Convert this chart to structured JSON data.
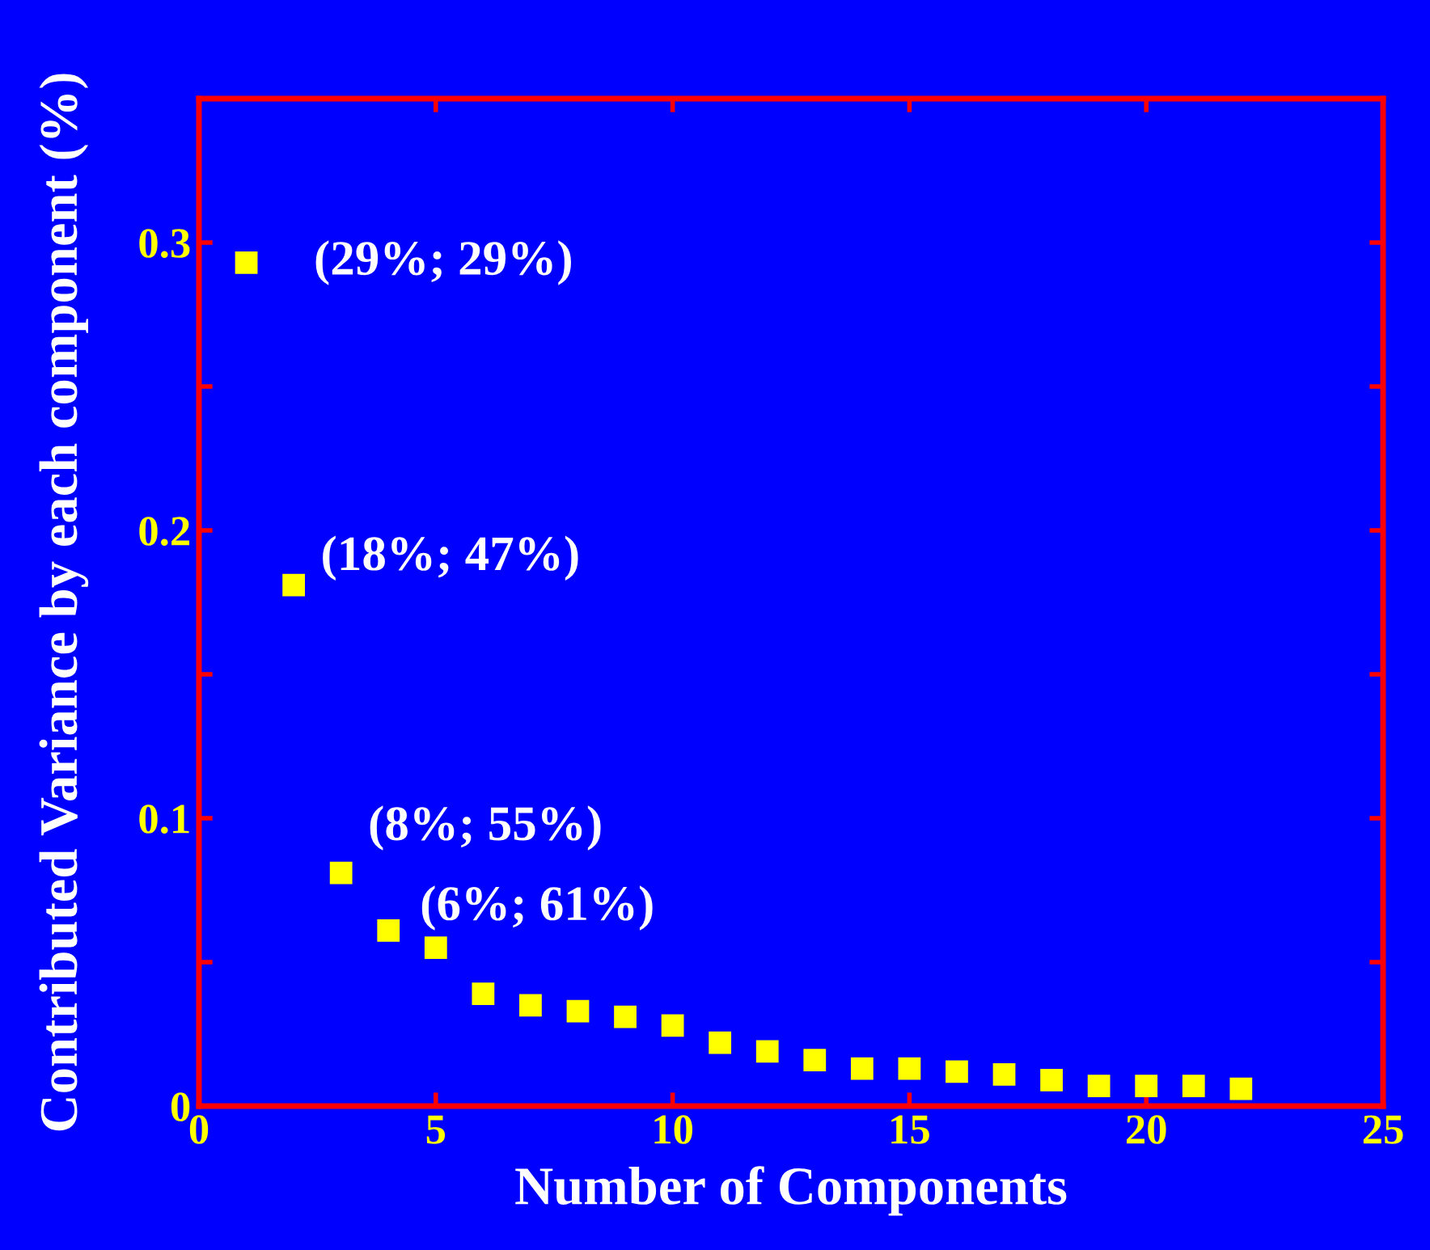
{
  "chart_data": {
    "type": "scatter",
    "xlabel": "Number of Components",
    "ylabel": "Contributed Variance by each component (%)",
    "x": [
      1,
      2,
      3,
      4,
      5,
      6,
      7,
      8,
      9,
      10,
      11,
      12,
      13,
      14,
      15,
      16,
      17,
      18,
      19,
      20,
      21,
      22
    ],
    "series": [
      {
        "color": "#ffff00",
        "values": [
          0.293,
          0.181,
          0.081,
          0.061,
          0.055,
          0.039,
          0.035,
          0.033,
          0.031,
          0.028,
          0.022,
          0.019,
          0.016,
          0.013,
          0.013,
          0.012,
          0.011,
          0.009,
          0.007,
          0.007,
          0.007,
          0.006
        ]
      }
    ],
    "marker": "square",
    "grid": false,
    "xlim": [
      0,
      25
    ],
    "ylim": [
      0,
      0.35
    ],
    "xticks": [
      0,
      5,
      10,
      15,
      20,
      25
    ],
    "yticks": [
      {
        "value": 0,
        "label": "0"
      },
      {
        "value": 0.05,
        "label": null
      },
      0.1,
      {
        "value": 0.15,
        "label": null
      },
      0.2,
      {
        "value": 0.25,
        "label": null
      },
      0.3
    ],
    "annotations": [
      {
        "text": "(29%; 29%)",
        "x": 1,
        "y": 0.293
      },
      {
        "text": "(18%; 47%)",
        "x": 2,
        "y": 0.181
      },
      {
        "text": "(8%; 55%)",
        "x": 3,
        "y": 0.081
      },
      {
        "text": "(6%; 61%)",
        "x": 4,
        "y": 0.061
      }
    ]
  }
}
